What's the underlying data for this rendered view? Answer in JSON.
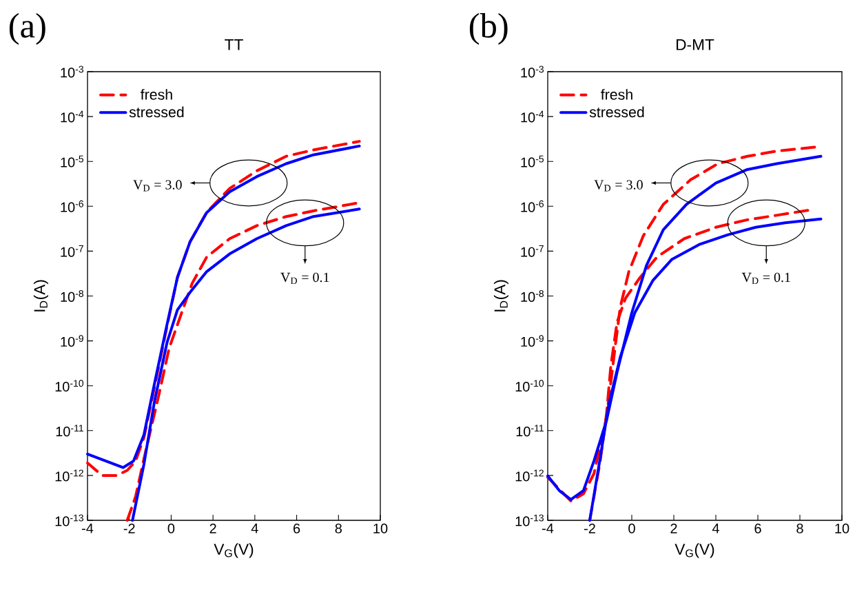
{
  "chart_data": [
    {
      "type": "line",
      "title": "TT",
      "xlabel": "V$_{G}$(V)",
      "ylabel": "I$_{D}$(A)",
      "log": "y",
      "legend": "top left",
      "xlim": [
        -4,
        10
      ],
      "ylim": [
        1e-13,
        0.001
      ],
      "xticks": [
        -4,
        -2,
        0,
        2,
        4,
        6,
        8,
        10
      ],
      "yticks": [
        {
          "value": 1e-13,
          "label": "10$^{-13}$"
        },
        {
          "value": 1e-12,
          "label": "10$^{-12}$"
        },
        {
          "value": 1e-11,
          "label": "10$^{-11}$"
        },
        {
          "value": 1e-10,
          "label": "10$^{-10}$"
        },
        {
          "value": 1e-09,
          "label": "10$^{-9}$"
        },
        {
          "value": 1e-08,
          "label": "10$^{-8}$"
        },
        {
          "value": 1e-07,
          "label": "10$^{-7}$"
        },
        {
          "value": 1e-06,
          "label": "10$^{-6}$"
        },
        {
          "value": 1e-05,
          "label": "10$^{-5}$"
        },
        {
          "value": 0.0001,
          "label": "10$^{-4}$"
        },
        {
          "value": 0.001,
          "label": "10$^{-3}$"
        }
      ],
      "annotations": [
        "(a)",
        "V$_{D}$ = 3.0",
        "V$_{D}$ = 0.1"
      ],
      "series": [
        {
          "name": "fresh",
          "color": "#ff0000",
          "line_style": "dashed",
          "x": [
            -4,
            -3.3,
            -2.6,
            -2.1,
            -1.7,
            -1.3,
            -0.8,
            -0.2,
            0.3,
            0.9,
            1.7,
            2.8,
            4.1,
            5.5,
            6.8,
            9
          ],
          "values": [
            1.9e-12,
            1e-12,
            1e-12,
            1.3e-12,
            2.1e-12,
            7e-12,
            9.3e-11,
            2.1e-09,
            2.6e-08,
            1.6e-07,
            7.4e-07,
            2.5e-06,
            6.2e-06,
            1.3e-05,
            1.8e-05,
            2.8e-05
          ]
        },
        {
          "color": "#ff0000",
          "line_style": "dashed",
          "x": [
            -2.1,
            -1.7,
            -1.2,
            -0.6,
            -0.1,
            0.5,
            1.0,
            1.7,
            2.8,
            4.1,
            5.5,
            6.8,
            9
          ],
          "values": [
            1e-13,
            3.4e-13,
            3.8e-12,
            5.9e-11,
            6.8e-10,
            4.2e-09,
            1.9e-08,
            7.4e-08,
            1.9e-07,
            3.7e-07,
            5.9e-07,
            7.9e-07,
            1.2e-06
          ]
        },
        {
          "name": "stressed",
          "color": "#0000ff",
          "line_style": "solid",
          "x": [
            -4,
            -2.3,
            -1.8,
            -1.3,
            -0.8,
            -0.2,
            0.3,
            0.9,
            1.7,
            2.8,
            4.1,
            5.5,
            6.8,
            9
          ],
          "values": [
            3e-12,
            1.5e-12,
            2.1e-12,
            8.1e-12,
            1.1e-10,
            2.3e-09,
            2.6e-08,
            1.6e-07,
            7.2e-07,
            2.1e-06,
            4.6e-06,
            8.9e-06,
            1.4e-05,
            2.2e-05
          ]
        },
        {
          "color": "#0000ff",
          "line_style": "solid",
          "x": [
            -1.85,
            -1.3,
            -0.8,
            -0.2,
            0.3,
            0.9,
            1.7,
            2.8,
            4.1,
            5.5,
            6.8,
            9
          ],
          "values": [
            1e-13,
            1.8e-12,
            4.4e-11,
            9.1e-10,
            4.9e-09,
            1.2e-08,
            3.5e-08,
            8.7e-08,
            1.9e-07,
            3.7e-07,
            5.9e-07,
            8.7e-07
          ]
        }
      ]
    },
    {
      "type": "line",
      "title": "D-MT",
      "xlabel": "V$_{G}$(V)",
      "ylabel": "I$_{D}$(A)",
      "log": "y",
      "legend": "top left",
      "xlim": [
        -4,
        10
      ],
      "ylim": [
        1e-13,
        0.001
      ],
      "xticks": [
        -4,
        -2,
        0,
        2,
        4,
        6,
        8,
        10
      ],
      "yticks": [
        {
          "value": 1e-13,
          "label": "10$^{-13}$"
        },
        {
          "value": 1e-12,
          "label": "10$^{-12}$"
        },
        {
          "value": 1e-11,
          "label": "10$^{-11}$"
        },
        {
          "value": 1e-10,
          "label": "10$^{-10}$"
        },
        {
          "value": 1e-09,
          "label": "10$^{-9}$"
        },
        {
          "value": 1e-08,
          "label": "10$^{-8}$"
        },
        {
          "value": 1e-07,
          "label": "10$^{-7}$"
        },
        {
          "value": 1e-06,
          "label": "10$^{-6}$"
        },
        {
          "value": 1e-05,
          "label": "10$^{-5}$"
        },
        {
          "value": 0.0001,
          "label": "10$^{-4}$"
        },
        {
          "value": 0.001,
          "label": "10$^{-3}$"
        }
      ],
      "annotations": [
        "(b)",
        "V$_{D}$ = 3.0",
        "V$_{D}$ = 0.1"
      ],
      "series": [
        {
          "name": "fresh",
          "color": "#ff0000",
          "line_style": "dashed",
          "x": [
            -4,
            -2.9,
            -2.3,
            -1.8,
            -1.2,
            -0.8,
            -0.55,
            -0.14,
            0.55,
            1.5,
            2.8,
            4.1,
            5.5,
            6.9,
            8.8
          ],
          "values": [
            9.1e-13,
            2.7e-13,
            3.9e-13,
            1.1e-12,
            2e-11,
            6.8e-10,
            5.6e-09,
            3.5e-08,
            2.2e-07,
            1.1e-06,
            3.9e-06,
            8.9e-06,
            1.3e-05,
            1.7e-05,
            2.1e-05
          ]
        },
        {
          "color": "#ff0000",
          "line_style": "dashed",
          "x": [
            -2,
            -1.5,
            -1.2,
            -1.0,
            -0.7,
            -0.3,
            0.4,
            1.2,
            2.5,
            4.0,
            5.5,
            6.9,
            8.5
          ],
          "values": [
            1e-13,
            2.1e-12,
            2.4e-11,
            2.7e-10,
            2.6e-09,
            8.9e-09,
            2.6e-08,
            7.4e-08,
            1.9e-07,
            3.4e-07,
            5e-07,
            6.3e-07,
            8.3e-07
          ]
        },
        {
          "name": "stressed",
          "color": "#0000ff",
          "line_style": "solid",
          "x": [
            -4,
            -3.45,
            -2.9,
            -2.3,
            -1.8,
            -1.2,
            -0.7,
            0,
            0.7,
            1.5,
            2.6,
            4.0,
            5.5,
            6.9,
            9
          ],
          "values": [
            9.8e-13,
            4.6e-13,
            2.9e-13,
            4.6e-13,
            2.1e-12,
            1.7e-11,
            2e-10,
            4.2e-09,
            4.8e-08,
            3e-07,
            1.1e-06,
            3.3e-06,
            6.6e-06,
            8.9e-06,
            1.3e-05
          ]
        },
        {
          "color": "#0000ff",
          "line_style": "solid",
          "x": [
            -2,
            -1.5,
            -1.1,
            -0.55,
            0.14,
            1.0,
            1.9,
            3.2,
            4.55,
            5.9,
            7.3,
            9
          ],
          "values": [
            1e-13,
            2.5e-12,
            3.7e-11,
            4.3e-10,
            4.2e-09,
            2.2e-08,
            6.5e-08,
            1.4e-07,
            2.3e-07,
            3.4e-07,
            4.3e-07,
            5.2e-07
          ]
        }
      ]
    }
  ]
}
